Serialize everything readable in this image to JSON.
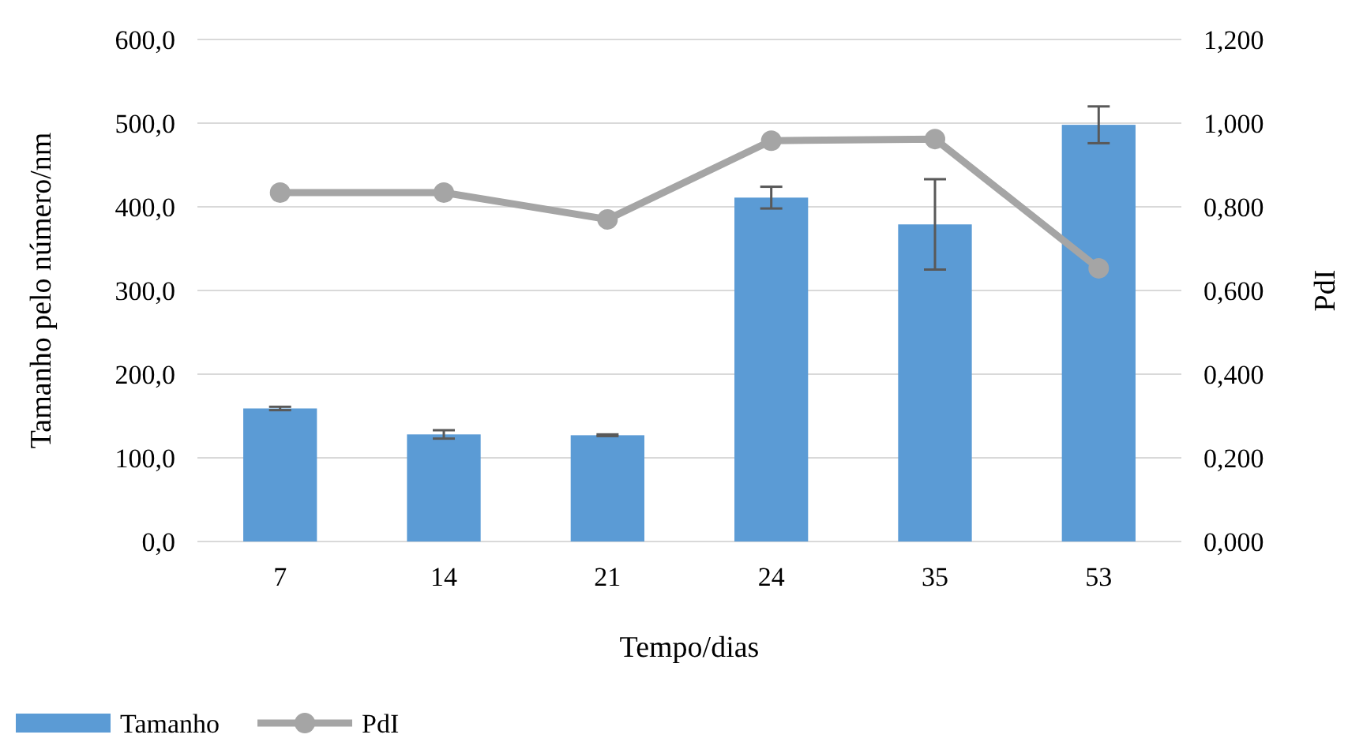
{
  "chart_data": {
    "type": "bar",
    "xlabel": "Tempo/dias",
    "ylabel": "Tamanho pelo número/nm",
    "y2label": "PdI",
    "categories": [
      "7",
      "14",
      "21",
      "24",
      "35",
      "53"
    ],
    "series": [
      {
        "name": "Tamanho",
        "color": "#5b9bd5",
        "values": [
          159,
          128,
          127,
          411,
          379,
          498
        ],
        "errors": [
          2,
          5,
          1,
          13,
          54,
          22
        ]
      },
      {
        "name": "PdI",
        "type": "line",
        "axis": "y2",
        "color": "#a5a5a5",
        "marker": "circle",
        "values": [
          0.834,
          0.834,
          0.77,
          0.958,
          0.962,
          0.653
        ]
      }
    ],
    "ylim": [
      0,
      600
    ],
    "yticks": [
      {
        "value": 0,
        "label": "0,0"
      },
      {
        "value": 100,
        "label": "100,0"
      },
      {
        "value": 200,
        "label": "200,0"
      },
      {
        "value": 300,
        "label": "300,0"
      },
      {
        "value": 400,
        "label": "400,0"
      },
      {
        "value": 500,
        "label": "500,0"
      },
      {
        "value": 600,
        "label": "600,0"
      }
    ],
    "y2lim": [
      0,
      1.2
    ],
    "y2ticks": [
      {
        "value": 0,
        "label": "0,000"
      },
      {
        "value": 0.2,
        "label": "0,200"
      },
      {
        "value": 0.4,
        "label": "0,400"
      },
      {
        "value": 0.6,
        "label": "0,600"
      },
      {
        "value": 0.8,
        "label": "0,800"
      },
      {
        "value": 1,
        "label": "1,000"
      },
      {
        "value": 1.2,
        "label": "1,200"
      }
    ],
    "grid": "y",
    "legend": "bottom left"
  }
}
